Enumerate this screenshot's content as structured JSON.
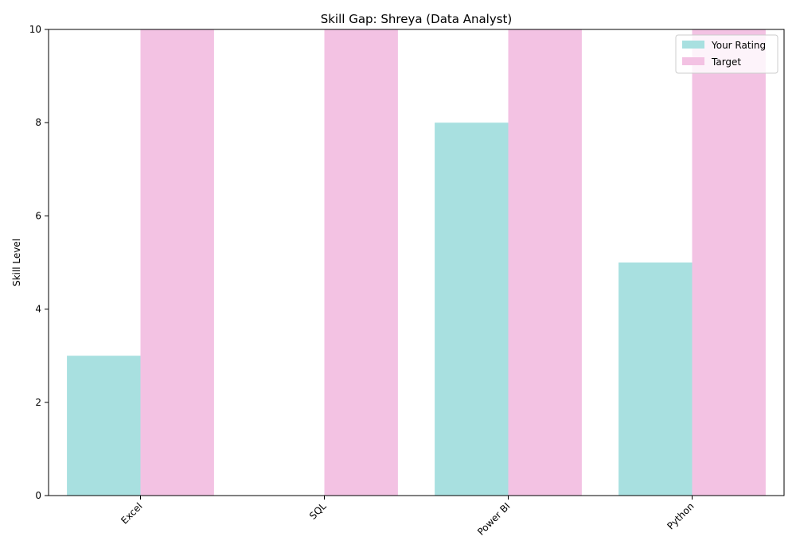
{
  "chart_data": {
    "type": "bar",
    "title": "Skill Gap: Shreya (Data Analyst)",
    "xlabel": "",
    "ylabel": "Skill Level",
    "categories": [
      "Excel",
      "SQL",
      "Power BI",
      "Python"
    ],
    "series": [
      {
        "name": "Your Rating",
        "values": [
          3,
          0,
          8,
          5
        ],
        "color": "#a8e0e0"
      },
      {
        "name": "Target",
        "values": [
          10,
          10,
          10,
          10
        ],
        "color": "#f3c2e3"
      }
    ],
    "ylim": [
      0,
      10
    ],
    "yticks": [
      0,
      2,
      4,
      6,
      8,
      10
    ],
    "grid": false,
    "legend": "top-right"
  }
}
